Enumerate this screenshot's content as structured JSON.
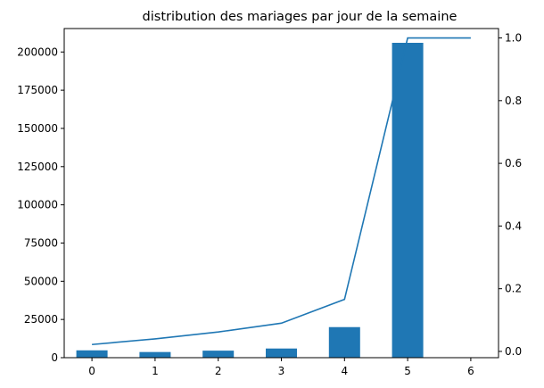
{
  "chart_data": {
    "type": "bar",
    "title": "distribution des mariages par jour de la semaine",
    "xlabel": "",
    "ylabel": "",
    "categories": [
      "0",
      "1",
      "2",
      "3",
      "4",
      "5",
      "6"
    ],
    "series": [
      {
        "type": "bar",
        "axis": "left",
        "values": [
          4800,
          3700,
          4600,
          6000,
          20000,
          206000,
          0
        ]
      },
      {
        "type": "line",
        "axis": "right",
        "values": [
          0.022,
          0.04,
          0.062,
          0.09,
          0.166,
          1.0,
          1.0
        ]
      }
    ],
    "ylim": [
      0,
      206000
    ],
    "y2lim": [
      -0.02,
      1.03
    ],
    "yticks": [
      0,
      25000,
      50000,
      75000,
      100000,
      125000,
      150000,
      175000,
      200000
    ],
    "y2ticks": [
      0.0,
      0.2,
      0.4,
      0.6,
      0.8,
      1.0
    ],
    "ytick_labels": [
      "0",
      "25000",
      "50000",
      "75000",
      "100000",
      "125000",
      "150000",
      "175000",
      "200000"
    ],
    "y2tick_labels": [
      "0.0",
      "0.2",
      "0.4",
      "0.6",
      "0.8",
      "1.0"
    ],
    "grid": false,
    "colors": {
      "bar": "#1f77b4",
      "line": "#1f77b4"
    }
  }
}
